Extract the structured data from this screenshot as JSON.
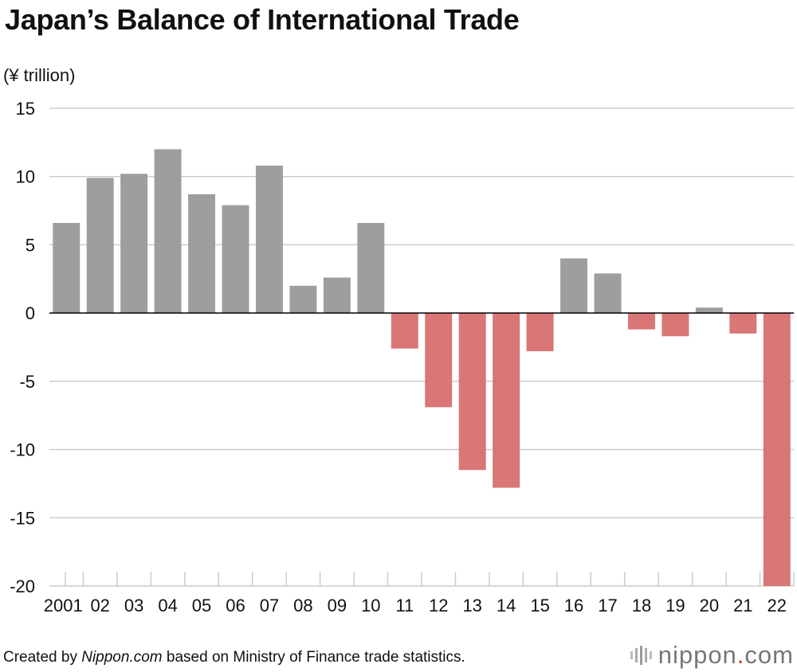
{
  "title": "Japan’s Balance of International Trade",
  "unit_label": "(¥ trillion)",
  "footer": {
    "prefix": "Created by ",
    "source_name": "Nippon.com",
    "suffix": " based on Ministry of Finance trade statistics."
  },
  "logo": {
    "text_main": "nippon",
    "text_dot": ".",
    "text_tail": "com",
    "mark_icon": "nippon-bars-icon"
  },
  "colors": {
    "positive": "#9e9e9e",
    "negative": "#d97676",
    "grid": "#cccccc",
    "axis": "#000000"
  },
  "chart_data": {
    "type": "bar",
    "categories": [
      "2001",
      "02",
      "03",
      "04",
      "05",
      "06",
      "07",
      "08",
      "09",
      "10",
      "11",
      "12",
      "13",
      "14",
      "15",
      "16",
      "17",
      "18",
      "19",
      "20",
      "21",
      "22"
    ],
    "values": [
      6.6,
      9.9,
      10.2,
      12.0,
      8.7,
      7.9,
      10.8,
      2.0,
      2.6,
      6.6,
      -2.6,
      -6.9,
      -11.5,
      -12.8,
      -2.8,
      4.0,
      2.9,
      -1.2,
      -1.7,
      0.4,
      -1.5,
      -20.0
    ],
    "ylim": [
      -20,
      15
    ],
    "yticks": [
      15,
      10,
      5,
      0,
      -5,
      -10,
      -15,
      -20
    ],
    "ytick_labels": [
      "15",
      "10",
      "5",
      "0",
      "-5",
      "-10",
      "-15",
      "-20"
    ],
    "ylabel": "(¥ trillion)",
    "xlabel": "",
    "grid": true
  }
}
